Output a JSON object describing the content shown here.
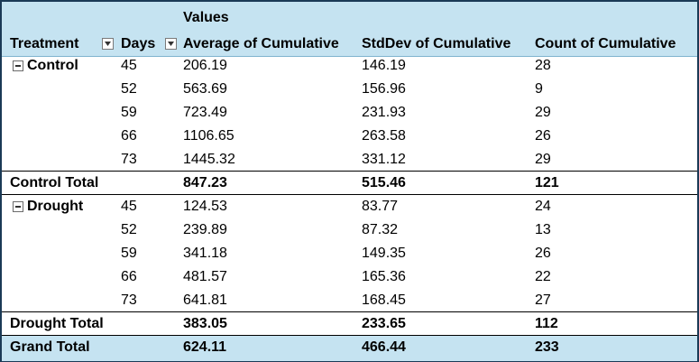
{
  "pivot": {
    "values_header": "Values",
    "headers": {
      "treatment": "Treatment",
      "days": "Days",
      "avg": "Average of Cumulative",
      "stddev": "StdDev of Cumulative",
      "count": "Count of Cumulative"
    },
    "groups": [
      {
        "name": "Control",
        "rows": [
          {
            "days": "45",
            "avg": "206.19",
            "stddev": "146.19",
            "count": "28"
          },
          {
            "days": "52",
            "avg": "563.69",
            "stddev": "156.96",
            "count": "9"
          },
          {
            "days": "59",
            "avg": "723.49",
            "stddev": "231.93",
            "count": "29"
          },
          {
            "days": "66",
            "avg": "1106.65",
            "stddev": "263.58",
            "count": "26"
          },
          {
            "days": "73",
            "avg": "1445.32",
            "stddev": "331.12",
            "count": "29"
          }
        ],
        "total": {
          "label": "Control Total",
          "avg": "847.23",
          "stddev": "515.46",
          "count": "121"
        }
      },
      {
        "name": "Drought",
        "rows": [
          {
            "days": "45",
            "avg": "124.53",
            "stddev": "83.77",
            "count": "24"
          },
          {
            "days": "52",
            "avg": "239.89",
            "stddev": "87.32",
            "count": "13"
          },
          {
            "days": "59",
            "avg": "341.18",
            "stddev": "149.35",
            "count": "26"
          },
          {
            "days": "66",
            "avg": "481.57",
            "stddev": "165.36",
            "count": "22"
          },
          {
            "days": "73",
            "avg": "641.81",
            "stddev": "168.45",
            "count": "27"
          }
        ],
        "total": {
          "label": "Drought Total",
          "avg": "383.05",
          "stddev": "233.65",
          "count": "112"
        }
      }
    ],
    "grand_total": {
      "label": "Grand Total",
      "avg": "624.11",
      "stddev": "466.44",
      "count": "233"
    }
  }
}
